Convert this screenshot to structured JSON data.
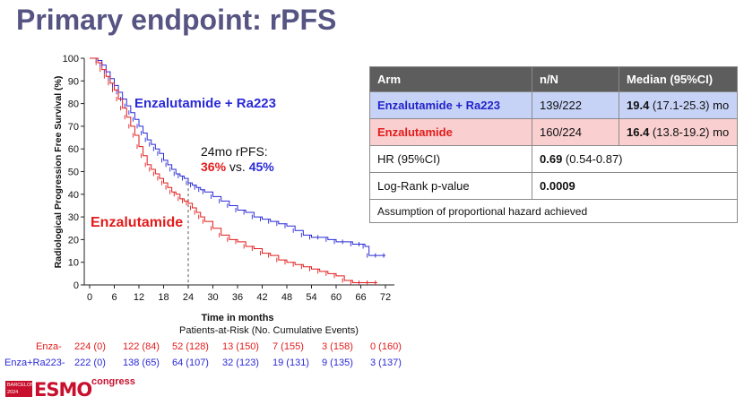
{
  "slide": {
    "title": "Primary endpoint: rPFS"
  },
  "chart_data": {
    "type": "line",
    "subtype": "kaplan-meier",
    "xlabel": "Time in months",
    "ylabel": "Radiological Progression Free Survival (%)",
    "xlim": [
      0,
      72
    ],
    "ylim": [
      0,
      100
    ],
    "xticks": [
      0,
      6,
      12,
      18,
      24,
      30,
      36,
      42,
      48,
      54,
      60,
      66,
      72
    ],
    "yticks": [
      0,
      10,
      20,
      30,
      40,
      50,
      60,
      70,
      80,
      90,
      100
    ],
    "reference_line_x": 24,
    "series": [
      {
        "name": "Enzalutamide + Ra223",
        "color": "#2a2ad8",
        "x": [
          0,
          2,
          3,
          4,
          5,
          6,
          7,
          8,
          9,
          10,
          11,
          12,
          13,
          14,
          15,
          16,
          17,
          18,
          19,
          20,
          21,
          22,
          23,
          24,
          25,
          26,
          27,
          28,
          30,
          32,
          34,
          36,
          38,
          40,
          42,
          44,
          46,
          48,
          50,
          52,
          54,
          56,
          58,
          60,
          62,
          64,
          66,
          67,
          68,
          70,
          72
        ],
        "y": [
          100,
          99,
          97,
          94,
          91,
          88,
          85,
          82,
          79,
          76,
          73,
          70,
          67,
          64,
          62,
          60,
          58,
          55,
          53,
          51,
          49,
          48,
          47,
          45,
          44,
          43,
          42,
          41,
          39,
          37,
          35,
          33,
          32,
          30,
          29,
          28,
          27,
          26,
          24,
          22,
          21,
          21,
          20,
          19,
          19,
          18,
          18,
          17,
          13,
          13,
          13
        ]
      },
      {
        "name": "Enzalutamide",
        "color": "#e31b1b",
        "x": [
          0,
          2,
          3,
          4,
          5,
          6,
          7,
          8,
          9,
          10,
          11,
          12,
          13,
          14,
          15,
          16,
          17,
          18,
          19,
          20,
          21,
          22,
          23,
          24,
          25,
          26,
          27,
          28,
          30,
          32,
          34,
          36,
          38,
          40,
          42,
          44,
          46,
          48,
          50,
          52,
          54,
          56,
          58,
          60,
          62,
          64,
          66,
          68,
          70
        ],
        "y": [
          100,
          98,
          95,
          92,
          89,
          86,
          82,
          78,
          74,
          70,
          66,
          61,
          57,
          53,
          51,
          49,
          47,
          45,
          43,
          41,
          40,
          38,
          37,
          36,
          34,
          32,
          30,
          28,
          25,
          22,
          20,
          19,
          17,
          16,
          14,
          13,
          11,
          10,
          9,
          8,
          7,
          6,
          5,
          4,
          2,
          1,
          1,
          1,
          1
        ]
      }
    ],
    "annotations": {
      "combo_label": "Enzalutamide + Ra223",
      "enza_label": "Enzalutamide",
      "rpfs_label": "24mo rPFS:",
      "rpfs_enza": "36%",
      "rpfs_vs": "vs.",
      "rpfs_combo": "45%"
    },
    "risk_table": {
      "title": "Patients-at-Risk (No. Cumulative Events)",
      "rows": [
        {
          "label": "Enza-",
          "values": [
            "224 (0)",
            "122 (84)",
            "52 (128)",
            "13 (150)",
            "7 (155)",
            "3 (158)",
            "0 (160)"
          ]
        },
        {
          "label": "Enza+Ra223-",
          "values": [
            "222 (0)",
            "138 (65)",
            "64 (107)",
            "32 (123)",
            "19 (131)",
            "9 (135)",
            "3 (137)"
          ]
        }
      ]
    }
  },
  "results_table": {
    "headers": [
      "Arm",
      "n/N",
      "Median  (95%CI)"
    ],
    "rows": [
      {
        "arm": "Enzalutamide + Ra223",
        "nn": "139/222",
        "median_bold": "19.4",
        "median_rest": " (17.1-25.3) mo"
      },
      {
        "arm": "Enzalutamide",
        "nn": "160/224",
        "median_bold": "16.4",
        "median_rest": " (13.8-19.2) mo"
      }
    ],
    "hr_label": "HR (95%CI)",
    "hr_bold": "0.69",
    "hr_rest": " (0.54-0.87)",
    "logrank_label": "Log-Rank p-value",
    "logrank_value": "0.0009",
    "note": "Assumption of proportional hazard achieved"
  },
  "logo": {
    "city": "BARCELONA 2024",
    "brand": "ESMO",
    "suffix": "congress"
  }
}
